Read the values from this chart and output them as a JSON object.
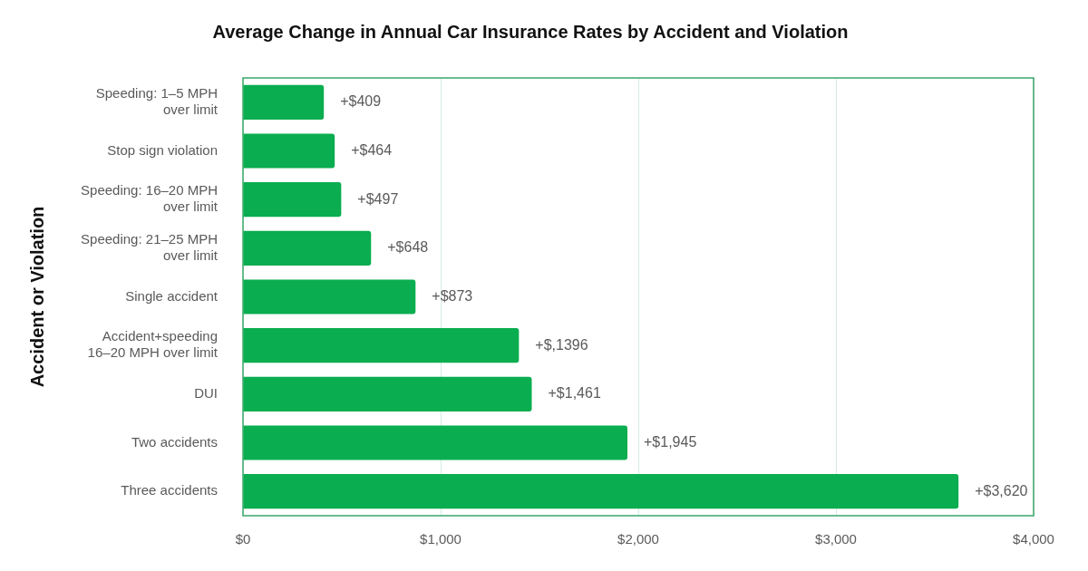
{
  "chart_data": {
    "type": "bar",
    "orientation": "horizontal",
    "title": "Average Change in Annual Car Insurance Rates by Accident and Violation",
    "ylabel": "Accident or Violation",
    "categories": [
      "Speeding: 1–5 MPH over limit",
      "Stop sign violation",
      "Speeding: 16–20 MPH over limit",
      "Speeding: 21–25 MPH over limit",
      "Single accident",
      "Accident+speeding 16–20 MPH over limit",
      "DUI",
      "Two accidents",
      "Three accidents"
    ],
    "values": [
      409,
      464,
      497,
      648,
      873,
      1396,
      1461,
      1945,
      3620
    ],
    "value_labels": [
      "+$409",
      "+$464",
      "+$497",
      "+$648",
      "+$873",
      "+$,1396",
      "+$1,461",
      "+$1,945",
      "+$3,620"
    ],
    "color": "#0aad4f",
    "xlim": [
      0,
      4000
    ],
    "xticks": [
      {
        "value": 0,
        "label": "$0"
      },
      {
        "value": 1000,
        "label": "$1,000"
      },
      {
        "value": 2000,
        "label": "$2,000"
      },
      {
        "value": 3000,
        "label": "$3,000"
      },
      {
        "value": 4000,
        "label": "$4,000"
      }
    ],
    "grid": "x",
    "legend": false
  }
}
